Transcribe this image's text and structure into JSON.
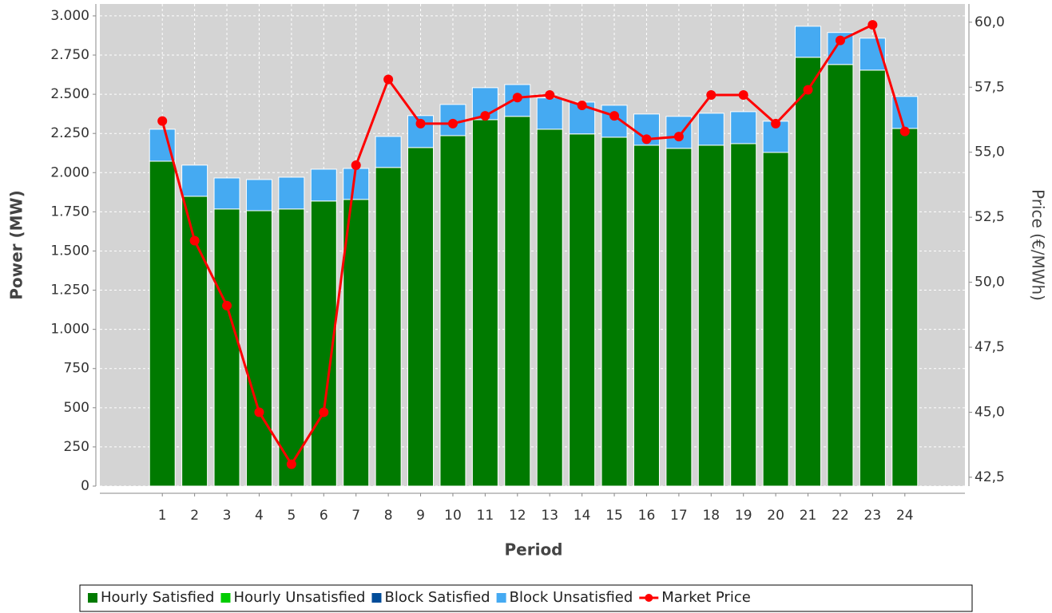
{
  "chart_data": {
    "type": "bar",
    "stacked": true,
    "x_label": "Period",
    "y_label": "Power (MW)",
    "y2_label": "Price (€/MWh)",
    "categories": [
      "1",
      "2",
      "3",
      "4",
      "5",
      "6",
      "7",
      "8",
      "9",
      "10",
      "11",
      "12",
      "13",
      "14",
      "15",
      "16",
      "17",
      "18",
      "19",
      "20",
      "21",
      "22",
      "23",
      "24"
    ],
    "series": [
      {
        "name": "Hourly Satisfied",
        "type": "bar",
        "color": "#007a00",
        "values": [
          2073,
          1849,
          1768,
          1757,
          1768,
          1819,
          1829,
          2033,
          2160,
          2236,
          2338,
          2359,
          2277,
          2247,
          2226,
          2175,
          2155,
          2175,
          2185,
          2129,
          2736,
          2690,
          2654,
          2282
        ]
      },
      {
        "name": "Hourly Unsatisfied",
        "type": "bar",
        "color": "#00cc00",
        "values": [
          0,
          0,
          0,
          0,
          0,
          0,
          0,
          0,
          0,
          0,
          0,
          0,
          0,
          0,
          0,
          0,
          0,
          0,
          0,
          0,
          0,
          0,
          0,
          0
        ]
      },
      {
        "name": "Block Satisfied",
        "type": "bar",
        "color": "#004c99",
        "values": [
          0,
          0,
          0,
          0,
          0,
          0,
          0,
          0,
          0,
          0,
          0,
          0,
          0,
          0,
          0,
          0,
          0,
          0,
          0,
          0,
          0,
          0,
          0,
          0
        ]
      },
      {
        "name": "Block Unsatisfied",
        "type": "bar",
        "color": "#45aaf2",
        "values": [
          204,
          199,
          198,
          199,
          203,
          203,
          198,
          198,
          204,
          199,
          204,
          203,
          200,
          203,
          204,
          199,
          204,
          204,
          204,
          199,
          198,
          204,
          204,
          204
        ]
      },
      {
        "name": "Market Price",
        "type": "line",
        "axis": "y2",
        "color": "#ff0000",
        "values": [
          56.2,
          51.6,
          49.1,
          45.0,
          43.0,
          45.0,
          54.5,
          57.8,
          56.1,
          56.1,
          56.4,
          57.1,
          57.2,
          56.8,
          56.4,
          55.5,
          55.6,
          57.2,
          57.2,
          56.1,
          57.4,
          59.3,
          59.9,
          55.8
        ]
      }
    ],
    "ylim": [
      0,
      3076
    ],
    "yticks": [
      0,
      250,
      500,
      750,
      {
        "value": 1000,
        "label": "1.000"
      },
      {
        "value": 1250,
        "label": "1.250"
      },
      {
        "value": 1500,
        "label": "1.500"
      },
      {
        "value": 1750,
        "label": "1.750"
      },
      {
        "value": 2000,
        "label": "2.000"
      },
      {
        "value": 2250,
        "label": "2.250"
      },
      {
        "value": 2500,
        "label": "2.500"
      },
      {
        "value": 2750,
        "label": "2.750"
      },
      {
        "value": 3000,
        "label": "3.000"
      }
    ],
    "y2lim": [
      42.16,
      60.7
    ],
    "y2ticks": [
      {
        "value": 42.5,
        "label": "42,5"
      },
      {
        "value": 45,
        "label": "45,0"
      },
      {
        "value": 47.5,
        "label": "47,5"
      },
      {
        "value": 50,
        "label": "50,0"
      },
      {
        "value": 52.5,
        "label": "52,5"
      },
      {
        "value": 55,
        "label": "55,0"
      },
      {
        "value": 57.5,
        "label": "57,5"
      },
      {
        "value": 60,
        "label": "60,0"
      }
    ],
    "grid": true,
    "legend": "bottom"
  }
}
